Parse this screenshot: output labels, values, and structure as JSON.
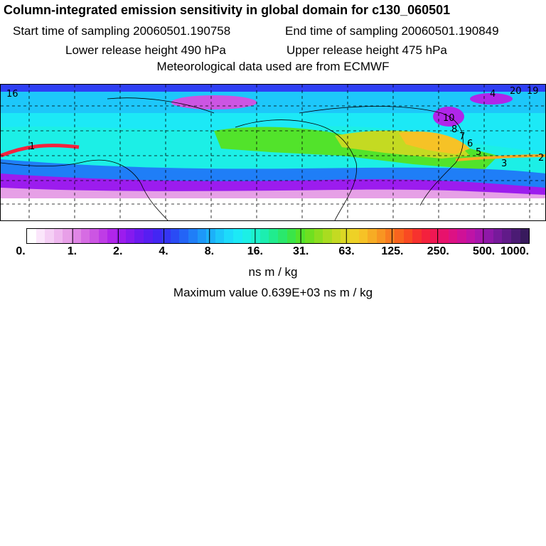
{
  "header": {
    "title": "Column-integrated emission sensitivity in global domain for c130_060501",
    "start": "Start time of sampling 20060501.190758",
    "end": "End time of sampling 20060501.190849",
    "lower": "Lower release height  490 hPa",
    "upper": "Upper release height  475 hPa",
    "met": "Meteorological data used are from ECMWF"
  },
  "map": {
    "track_labels": [
      "1",
      "2",
      "3",
      "4",
      "5",
      "6",
      "7",
      "8",
      "10",
      "16",
      "20",
      "19"
    ]
  },
  "legend": {
    "ticks": [
      "0.",
      "1.",
      "2.",
      "4.",
      "8.",
      "16.",
      "31.",
      "63.",
      "125.",
      "250.",
      "500.",
      "1000."
    ],
    "colors": [
      "#ffffff",
      "#fbe6fb",
      "#f5cff5",
      "#efb8ef",
      "#e89fe8",
      "#e086e6",
      "#d66ce3",
      "#cc55e3",
      "#bf3ce6",
      "#b026ea",
      "#9c1cee",
      "#851aef",
      "#6c1af0",
      "#571ef2",
      "#4326f3",
      "#3535f4",
      "#2a4bf5",
      "#2364f6",
      "#1f7ef7",
      "#1d98f8",
      "#1cb1f9",
      "#1dc7fa",
      "#1ddbfb",
      "#1ce9f6",
      "#1cefe6",
      "#1cf0cd",
      "#1ceeb0",
      "#20ec8e",
      "#2ae86c",
      "#3ae548",
      "#52e32b",
      "#6fe020",
      "#8cde1f",
      "#a9dc20",
      "#c4da22",
      "#dcd824",
      "#eed126",
      "#f6c226",
      "#f7ac24",
      "#f89522",
      "#f97c20",
      "#f9631e",
      "#f94a22",
      "#f7322e",
      "#f4213d",
      "#f01753",
      "#e8126c",
      "#dd1184",
      "#cf1197",
      "#be13a6",
      "#a816ad",
      "#8f18a8",
      "#771a9b",
      "#611b89",
      "#4b1b74",
      "#381a5d"
    ],
    "units": "ns m / kg",
    "max": "Maximum value  0.639E+03 ns m / kg"
  }
}
